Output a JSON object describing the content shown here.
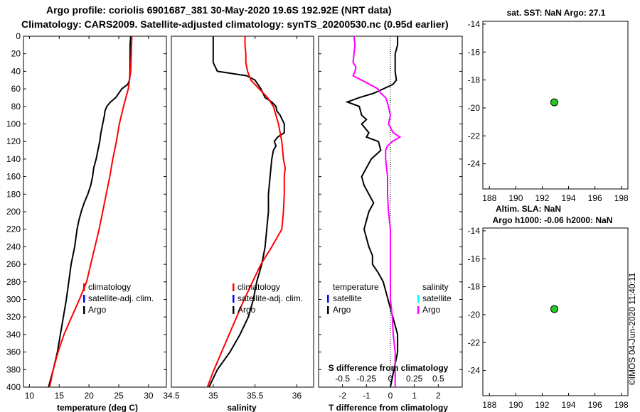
{
  "header": {
    "line1": "Argo profile: coriolis 6901687_381 30-May-2020 19.6S 192.92E (NRT data)",
    "line2": "Climatology: CARS2009. Satellite-adjusted climatology: synTS_20200530.nc (0.95d earlier)"
  },
  "watermark": "©IMOS 04-Jun-2020 11:40:11",
  "colors": {
    "argo": "#000000",
    "climatology": "#ff0000",
    "satellite": "#0000ff",
    "sal_diff": "#ff00ff",
    "sal_satellite": "#00ffff",
    "marker": "#22cc22"
  },
  "legend_temp": {
    "climatology": "climatology",
    "satellite": "satellite-adj. clim.",
    "argo": "Argo"
  },
  "legend_sal": {
    "climatology": "climatology",
    "satellite": "satellite-adj. clim.",
    "argo": "Argo"
  },
  "legend_diff": {
    "temp_head": "temperature",
    "sal_head": "salinity",
    "satellite": "satellite",
    "argo": "Argo",
    "sal_satellite": "satellite",
    "sal_argo": "Argo"
  },
  "maps": {
    "sst_title": "sat. SST: NaN Argo: 27.1",
    "sla_title1": "Altim. SLA: NaN",
    "sla_title2": "Argo h1000: -0.06 h2000: NaN"
  },
  "chart_data": [
    {
      "id": "temperature",
      "type": "line",
      "xlabel": "temperature (deg C)",
      "ylabel": "",
      "xlim": [
        9,
        33
      ],
      "ylim": [
        400,
        0
      ],
      "xticks": [
        10,
        15,
        20,
        25,
        30
      ],
      "yticks": [
        0,
        20,
        40,
        60,
        80,
        100,
        120,
        140,
        160,
        180,
        200,
        220,
        240,
        260,
        280,
        300,
        320,
        340,
        360,
        380,
        400
      ],
      "series": [
        {
          "name": "Argo",
          "color": "#000000",
          "y": [
            0,
            10,
            20,
            30,
            40,
            50,
            55,
            60,
            70,
            75,
            80,
            85,
            90,
            100,
            110,
            120,
            130,
            140,
            150,
            160,
            170,
            180,
            190,
            200,
            210,
            220,
            240,
            260,
            280,
            300,
            320,
            340,
            360,
            380,
            400
          ],
          "x": [
            27,
            26.9,
            26.9,
            26.9,
            26.9,
            26.8,
            26.5,
            25.5,
            24.5,
            23.6,
            23.0,
            22.7,
            22.6,
            22.3,
            22.0,
            21.8,
            21.5,
            21.2,
            20.8,
            20.6,
            20.3,
            19.8,
            19.2,
            18.7,
            18.3,
            18.0,
            17.6,
            17.0,
            16.6,
            16.2,
            15.7,
            15.2,
            14.7,
            14.0,
            13.2
          ]
        },
        {
          "name": "climatology",
          "color": "#ff0000",
          "y": [
            0,
            20,
            40,
            60,
            80,
            100,
            120,
            140,
            160,
            180,
            200,
            220,
            240,
            260,
            280,
            300,
            320,
            340,
            360,
            380,
            400
          ],
          "x": [
            27.2,
            27.1,
            27.0,
            26.6,
            25.8,
            25.1,
            24.6,
            24.0,
            23.5,
            22.9,
            22.3,
            21.7,
            21.0,
            20.3,
            19.6,
            18.4,
            17.1,
            15.8,
            14.8,
            14.0,
            13.4
          ]
        }
      ]
    },
    {
      "id": "salinity",
      "type": "line",
      "xlabel": "salinity",
      "xlim": [
        34.5,
        36.2
      ],
      "ylim": [
        400,
        0
      ],
      "xticks": [
        34.5,
        35,
        35.5,
        36
      ],
      "xtick_labels": [
        "34.5",
        "35",
        "35.5",
        "36"
      ],
      "series": [
        {
          "name": "Argo",
          "color": "#000000",
          "y": [
            0,
            10,
            20,
            30,
            40,
            45,
            50,
            60,
            70,
            75,
            80,
            85,
            90,
            100,
            110,
            115,
            120,
            125,
            130,
            140,
            160,
            180,
            200,
            220,
            240,
            260,
            280,
            300,
            320,
            340,
            360,
            380,
            400
          ],
          "x": [
            35.0,
            35.0,
            35.0,
            35.0,
            35.05,
            35.4,
            35.5,
            35.57,
            35.62,
            35.7,
            35.75,
            35.76,
            35.8,
            35.85,
            35.85,
            35.77,
            35.73,
            35.75,
            35.72,
            35.7,
            35.68,
            35.66,
            35.66,
            35.64,
            35.62,
            35.58,
            35.52,
            35.48,
            35.42,
            35.32,
            35.2,
            35.05,
            34.95
          ]
        },
        {
          "name": "climatology",
          "color": "#ff0000",
          "y": [
            0,
            10,
            20,
            30,
            40,
            50,
            60,
            70,
            80,
            100,
            120,
            140,
            150,
            160,
            180,
            200,
            220,
            240,
            260,
            280,
            300,
            320,
            340,
            360,
            380,
            400
          ],
          "x": [
            35.38,
            35.38,
            35.39,
            35.39,
            35.41,
            35.45,
            35.55,
            35.65,
            35.72,
            35.78,
            35.82,
            35.84,
            35.86,
            35.85,
            35.85,
            35.84,
            35.82,
            35.7,
            35.57,
            35.47,
            35.37,
            35.28,
            35.19,
            35.1,
            35.01,
            34.93
          ]
        }
      ]
    },
    {
      "id": "differences",
      "type": "line",
      "xlabel": "T difference from climatology",
      "xlabel2": "S difference from climatology",
      "xlim": [
        -3,
        3
      ],
      "ylim": [
        400,
        0
      ],
      "xticks": [
        -2,
        -1,
        0,
        1,
        2
      ],
      "xticks2": [
        -0.5,
        -0.25,
        0,
        0.25,
        0.5
      ],
      "xtick2_labels": [
        "-0.5",
        "-0.25",
        "0",
        "0.25",
        "0.5"
      ],
      "series": [
        {
          "name": "T difference (Argo)",
          "color": "#000000",
          "y": [
            0,
            10,
            20,
            40,
            50,
            55,
            60,
            65,
            70,
            75,
            80,
            90,
            95,
            100,
            110,
            115,
            120,
            130,
            140,
            150,
            160,
            170,
            180,
            190,
            200,
            210,
            220,
            230,
            240,
            250,
            260,
            270,
            280,
            290,
            300,
            320,
            340,
            360,
            380,
            400
          ],
          "x": [
            0.3,
            0.3,
            0.2,
            0.2,
            0.25,
            0.1,
            -0.3,
            -0.7,
            -1.3,
            -1.8,
            -1.3,
            -1.2,
            -1.0,
            -1.2,
            -0.9,
            -1.0,
            -0.5,
            -0.4,
            -0.8,
            -1.0,
            -1.2,
            -1.1,
            -0.9,
            -0.7,
            -0.9,
            -1.0,
            -1.1,
            -1.0,
            -0.9,
            -0.75,
            -0.75,
            -0.5,
            -0.3,
            -0.2,
            -0.1,
            0.1,
            0.3,
            0.3,
            0.15,
            0.0
          ]
        },
        {
          "name": "S difference (Argo)",
          "color": "#ff00ff",
          "y": [
            0,
            10,
            20,
            30,
            35,
            40,
            45,
            50,
            60,
            65,
            70,
            80,
            90,
            100,
            110,
            115,
            120,
            125,
            130,
            140,
            160,
            180,
            200,
            220,
            240,
            260,
            280,
            300,
            320,
            340,
            360,
            380,
            400
          ],
          "x": [
            -0.38,
            -0.37,
            -0.38,
            -0.39,
            -0.36,
            -0.37,
            -0.39,
            -0.3,
            -0.13,
            -0.1,
            -0.05,
            -0.02,
            0.0,
            -0.02,
            0.03,
            0.1,
            0.02,
            -0.03,
            -0.05,
            -0.05,
            -0.03,
            -0.03,
            -0.02,
            0.0,
            0.0,
            0.0,
            0.0,
            0.0,
            0.02,
            0.03,
            0.05,
            0.05,
            0.05
          ]
        }
      ]
    },
    {
      "id": "sst-map",
      "type": "scatter",
      "title": "sat. SST: NaN Argo: 27.1",
      "xlim": [
        187.5,
        198.5
      ],
      "ylim": [
        -25.8,
        -13.8
      ],
      "xticks": [
        188,
        190,
        192,
        194,
        196,
        198
      ],
      "yticks": [
        -14,
        -16,
        -18,
        -20,
        -22,
        -24
      ],
      "points": [
        {
          "x": 192.92,
          "y": -19.6
        }
      ]
    },
    {
      "id": "sla-map",
      "type": "scatter",
      "title": "Altim. SLA: NaN",
      "subtitle": "Argo h1000: -0.06 h2000: NaN",
      "xlim": [
        187.5,
        198.5
      ],
      "ylim": [
        -25.8,
        -13.8
      ],
      "xticks": [
        188,
        190,
        192,
        194,
        196,
        198
      ],
      "yticks": [
        -14,
        -16,
        -18,
        -20,
        -22,
        -24
      ],
      "points": [
        {
          "x": 192.92,
          "y": -19.6
        }
      ]
    }
  ]
}
